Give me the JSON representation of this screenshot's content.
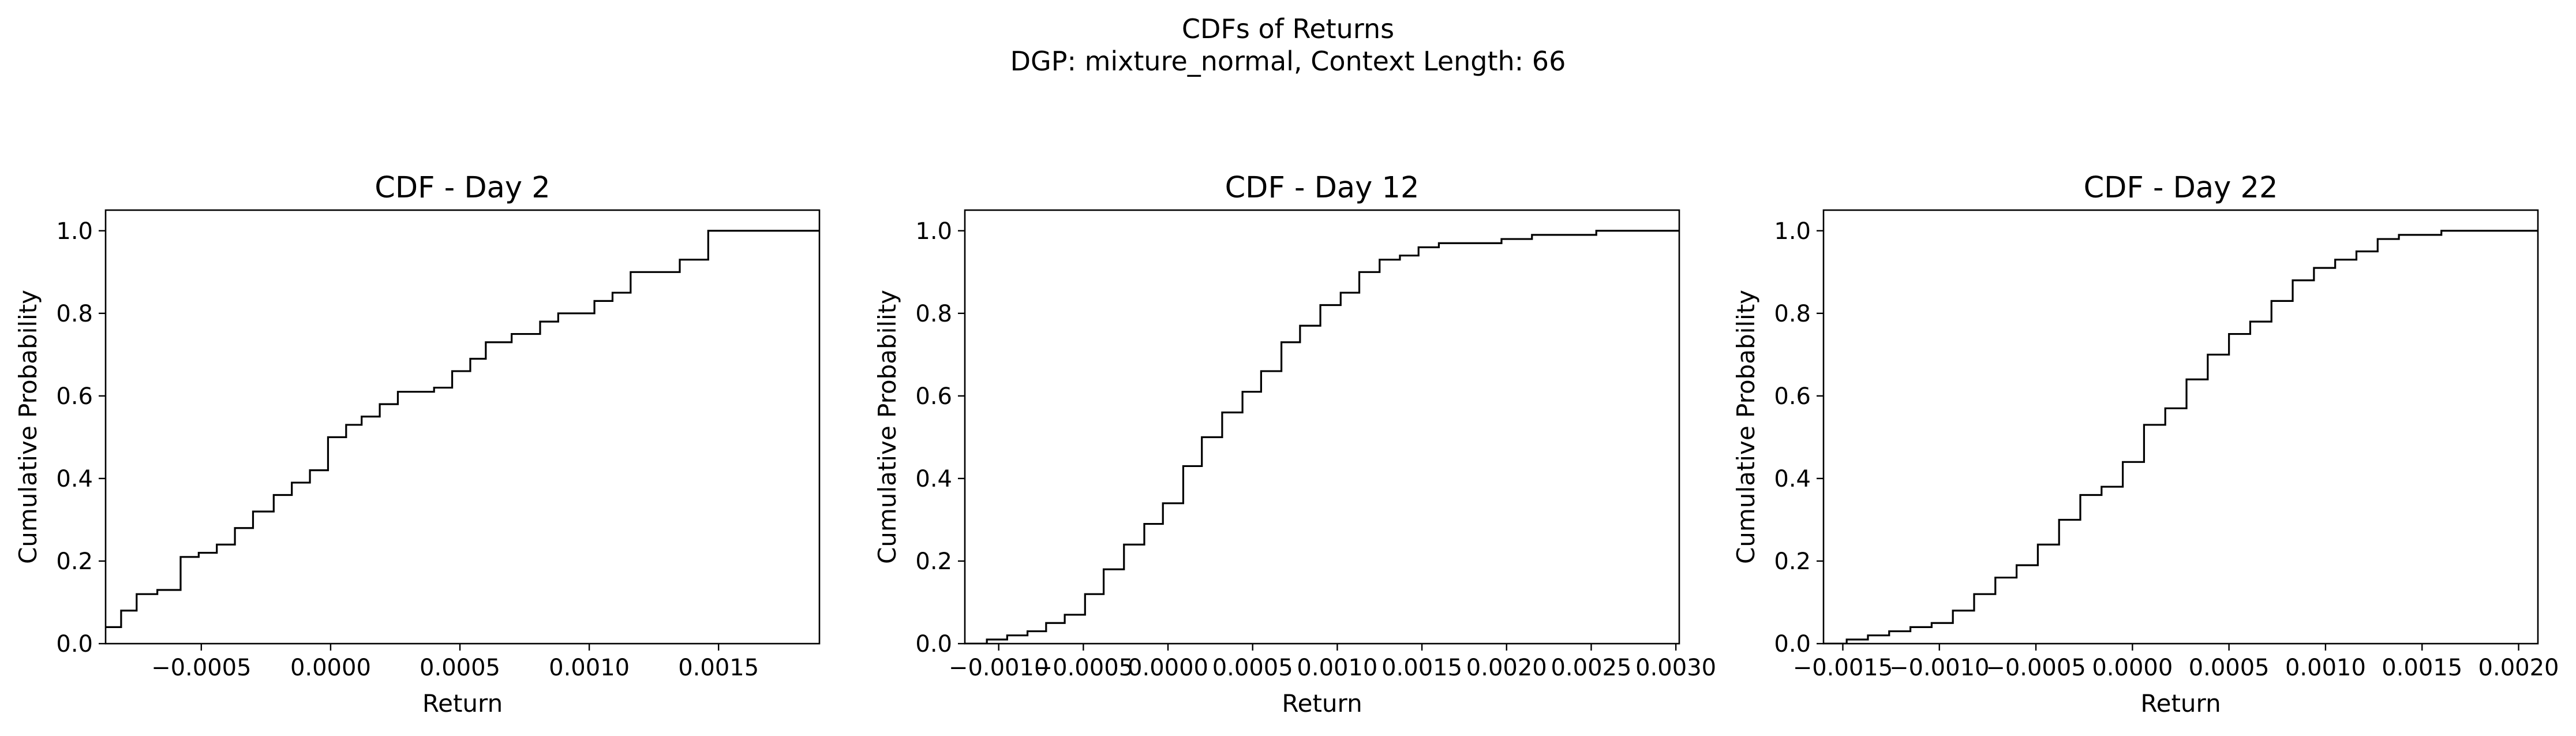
{
  "figure": {
    "suptitle_line1": "CDFs of Returns",
    "suptitle_line2": "DGP: mixture_normal, Context Length: 66"
  },
  "colors": {
    "line": "#000000",
    "background": "#ffffff",
    "frame": "#000000"
  },
  "chart_data": [
    {
      "type": "line",
      "step": "post",
      "title": "CDF - Day 2",
      "xlabel": "Return",
      "ylabel": "Cumulative Probability",
      "xlim": [
        -0.00087,
        0.00189
      ],
      "ylim": [
        0.0,
        1.05
      ],
      "xticks": [
        -0.0005,
        0.0,
        0.0005,
        0.001,
        0.0015
      ],
      "xtick_labels": [
        "−0.0005",
        "0.0000",
        "0.0005",
        "0.0010",
        "0.0015"
      ],
      "yticks": [
        0.0,
        0.2,
        0.4,
        0.6,
        0.8,
        1.0
      ],
      "ytick_labels": [
        "0.0",
        "0.2",
        "0.4",
        "0.6",
        "0.8",
        "1.0"
      ],
      "grid": false,
      "x": [
        -0.00087,
        -0.00081,
        -0.00075,
        -0.00067,
        -0.00058,
        -0.00051,
        -0.00044,
        -0.00037,
        -0.0003,
        -0.00022,
        -0.00015,
        -8e-05,
        -1e-05,
        6e-05,
        0.00012,
        0.00019,
        0.00026,
        0.00033,
        0.0004,
        0.00047,
        0.00054,
        0.0006,
        0.0007,
        0.00081,
        0.00088,
        0.00095,
        0.00102,
        0.00109,
        0.00116,
        0.00135,
        0.00146,
        0.00153,
        0.00161,
        0.00168,
        0.00176,
        0.00189
      ],
      "y": [
        0.04,
        0.08,
        0.12,
        0.13,
        0.21,
        0.22,
        0.24,
        0.28,
        0.32,
        0.36,
        0.39,
        0.42,
        0.5,
        0.53,
        0.55,
        0.58,
        0.61,
        0.61,
        0.62,
        0.66,
        0.69,
        0.73,
        0.75,
        0.78,
        0.8,
        0.8,
        0.83,
        0.85,
        0.9,
        0.93,
        1.0,
        1.0,
        1.0,
        1.0,
        1.0,
        1.0
      ]
    },
    {
      "type": "line",
      "step": "post",
      "title": "CDF - Day 12",
      "xlabel": "Return",
      "ylabel": "Cumulative Probability",
      "xlim": [
        -0.0012,
        0.00302
      ],
      "ylim": [
        0.0,
        1.05
      ],
      "xticks": [
        -0.001,
        -0.0005,
        0.0,
        0.0005,
        0.001,
        0.0015,
        0.002,
        0.0025,
        0.003
      ],
      "xtick_labels": [
        "−0.0010",
        "−0.0005",
        "0.0000",
        "0.0005",
        "0.0010",
        "0.0015",
        "0.0020",
        "0.0025",
        "0.0030"
      ],
      "yticks": [
        0.0,
        0.2,
        0.4,
        0.6,
        0.8,
        1.0
      ],
      "ytick_labels": [
        "0.0",
        "0.2",
        "0.4",
        "0.6",
        "0.8",
        "1.0"
      ],
      "grid": false,
      "x": [
        -0.0012,
        -0.00107,
        -0.00095,
        -0.00083,
        -0.00072,
        -0.00061,
        -0.00049,
        -0.00038,
        -0.00026,
        -0.00014,
        -3e-05,
        9e-05,
        0.0002,
        0.00032,
        0.00044,
        0.00055,
        0.00067,
        0.00078,
        0.0009,
        0.00102,
        0.00113,
        0.00125,
        0.00137,
        0.00148,
        0.0016,
        0.00172,
        0.00185,
        0.00197,
        0.00215,
        0.00234,
        0.00253,
        0.0027,
        0.00285,
        0.00302
      ],
      "y": [
        0.0,
        0.01,
        0.02,
        0.03,
        0.05,
        0.07,
        0.12,
        0.18,
        0.24,
        0.29,
        0.34,
        0.43,
        0.5,
        0.56,
        0.61,
        0.66,
        0.73,
        0.77,
        0.82,
        0.85,
        0.9,
        0.93,
        0.94,
        0.96,
        0.97,
        0.97,
        0.97,
        0.98,
        0.99,
        0.99,
        1.0,
        1.0,
        1.0,
        1.0
      ]
    },
    {
      "type": "line",
      "step": "post",
      "title": "CDF - Day 22",
      "xlabel": "Return",
      "ylabel": "Cumulative Probability",
      "xlim": [
        -0.0016,
        0.0021
      ],
      "ylim": [
        0.0,
        1.05
      ],
      "xticks": [
        -0.0015,
        -0.001,
        -0.0005,
        0.0,
        0.0005,
        0.001,
        0.0015,
        0.002
      ],
      "xtick_labels": [
        "−0.0015",
        "−0.0010",
        "−0.0005",
        "0.0000",
        "0.0005",
        "0.0010",
        "0.0015",
        "0.0020"
      ],
      "yticks": [
        0.0,
        0.2,
        0.4,
        0.6,
        0.8,
        1.0
      ],
      "ytick_labels": [
        "0.0",
        "0.2",
        "0.4",
        "0.6",
        "0.8",
        "1.0"
      ],
      "grid": false,
      "x": [
        -0.0016,
        -0.00148,
        -0.00137,
        -0.00126,
        -0.00115,
        -0.00104,
        -0.00093,
        -0.00082,
        -0.00071,
        -0.0006,
        -0.00049,
        -0.00038,
        -0.00027,
        -0.00016,
        -5e-05,
        6e-05,
        0.00017,
        0.00028,
        0.00039,
        0.0005,
        0.00061,
        0.00072,
        0.00083,
        0.00094,
        0.00105,
        0.00116,
        0.00127,
        0.00138,
        0.00149,
        0.0016,
        0.00171,
        0.00182,
        0.00195,
        0.0021
      ],
      "y": [
        0.0,
        0.01,
        0.02,
        0.03,
        0.04,
        0.05,
        0.08,
        0.12,
        0.16,
        0.19,
        0.24,
        0.3,
        0.36,
        0.38,
        0.44,
        0.53,
        0.57,
        0.64,
        0.7,
        0.75,
        0.78,
        0.83,
        0.88,
        0.91,
        0.93,
        0.95,
        0.98,
        0.99,
        0.99,
        1.0,
        1.0,
        1.0,
        1.0,
        1.0
      ]
    }
  ]
}
